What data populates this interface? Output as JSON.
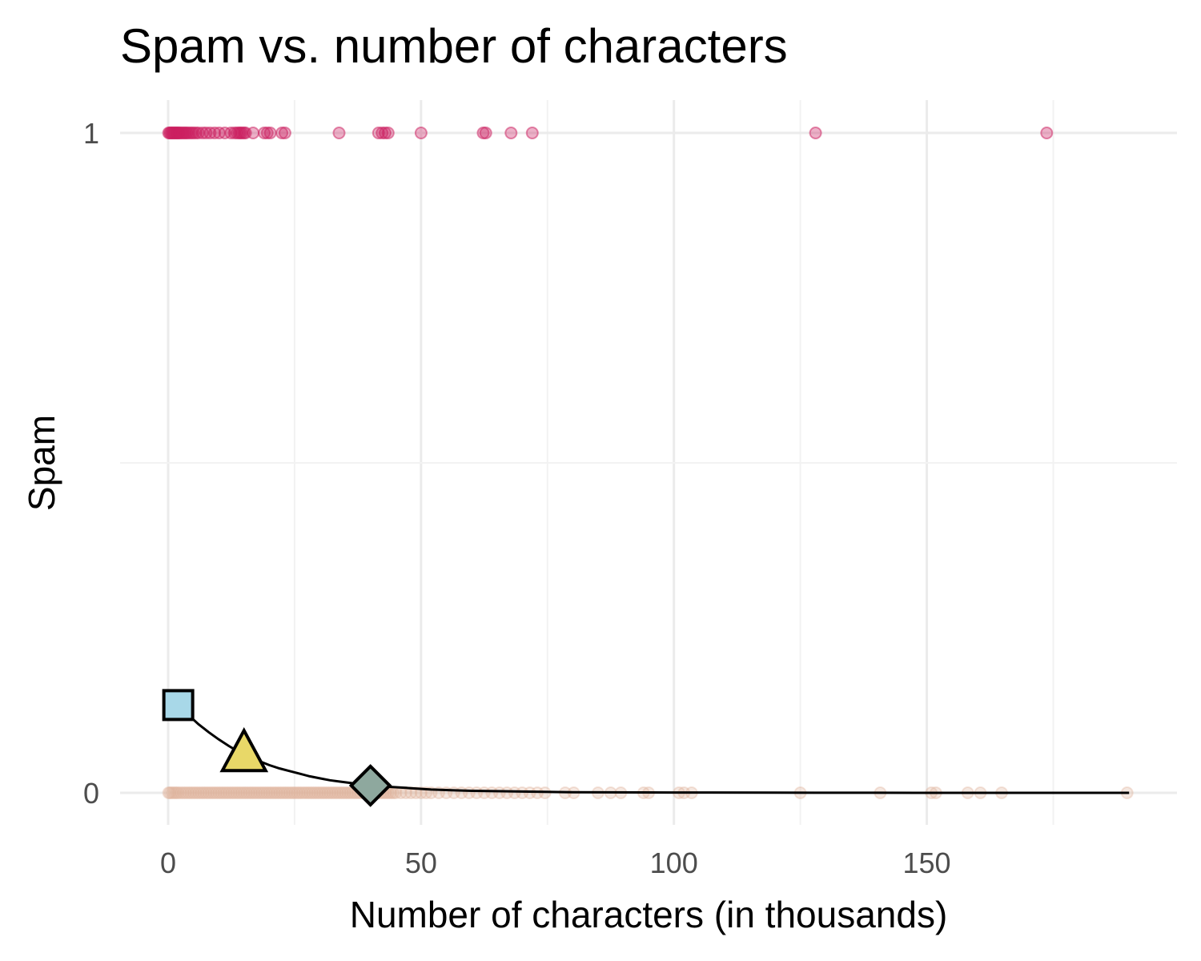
{
  "chart_data": {
    "type": "scatter",
    "title": "Spam vs. number of characters",
    "xlabel": "Number of characters (in thousands)",
    "ylabel": "Spam",
    "xlim": [
      -9.3,
      199.3
    ],
    "ylim": [
      -0.05,
      1.05
    ],
    "x_ticks": [
      0,
      50,
      100,
      150
    ],
    "y_ticks": [
      0,
      1
    ],
    "grid": true,
    "colors": {
      "spam": "#cc2060",
      "not_spam": "#dfb29c",
      "curve": "#000000",
      "square": "#a8d8e8",
      "triangle": "#e8d868",
      "diamond": "#8ea89e"
    },
    "series": [
      {
        "values": 1,
        "x": [
          0.1,
          0.3,
          0.5,
          0.7,
          0.9,
          1.1,
          1.3,
          1.5,
          1.7,
          1.9,
          2.1,
          2.3,
          2.6,
          2.9,
          3.2,
          3.5,
          3.8,
          4.2,
          4.6,
          5.0,
          5.5,
          6.0,
          6.8,
          7.5,
          8.3,
          9.2,
          10.1,
          11.2,
          12.4,
          13.1,
          13.6,
          14.0,
          14.3,
          14.6,
          15.0,
          15.3,
          16.8,
          19.0,
          19.6,
          20.2,
          22.5,
          23.1,
          33.8,
          41.6,
          42.3,
          42.9,
          43.5,
          50.0,
          62.3,
          62.8,
          67.8,
          72.0,
          128.0,
          173.7
        ]
      },
      {
        "values": 0,
        "x": [
          0.1,
          0.4,
          0.8,
          1.2,
          1.6,
          2.0,
          2.5,
          3.0,
          3.5,
          4.0,
          4.5,
          5.0,
          5.5,
          6.0,
          6.5,
          7.0,
          7.5,
          8.0,
          8.5,
          9.0,
          9.5,
          10.0,
          10.5,
          11.0,
          11.5,
          12.0,
          12.5,
          13.0,
          13.5,
          14.0,
          14.5,
          15.0,
          15.5,
          16.0,
          16.5,
          17.0,
          17.5,
          18.0,
          18.5,
          19.0,
          19.5,
          20.0,
          20.5,
          21.0,
          21.5,
          22.0,
          22.5,
          23.0,
          23.5,
          24.0,
          24.5,
          25.0,
          25.5,
          26.0,
          26.5,
          27.0,
          27.5,
          28.0,
          28.5,
          29.0,
          29.5,
          30.0,
          30.5,
          31.0,
          31.5,
          32.0,
          32.5,
          33.0,
          33.5,
          34.0,
          34.5,
          35.0,
          35.5,
          36.0,
          36.5,
          37.0,
          37.5,
          38.0,
          38.5,
          39.0,
          39.5,
          40.0,
          40.5,
          41.0,
          41.5,
          42.0,
          42.5,
          43.0,
          43.5,
          44.0,
          44.5,
          45.0,
          46.0,
          47.0,
          48.0,
          49.0,
          50.0,
          51.0,
          52.0,
          53.5,
          55.0,
          56.5,
          58.0,
          59.5,
          61.0,
          62.5,
          64.0,
          65.5,
          67.0,
          68.5,
          70.0,
          71.5,
          73.0,
          74.5,
          78.5,
          80.2,
          85.0,
          87.5,
          89.5,
          94.0,
          95.0,
          101.0,
          102.0,
          103.5,
          125.0,
          140.8,
          150.9,
          151.8,
          158.1,
          160.6,
          164.8,
          189.6
        ]
      }
    ],
    "fitted_curve": {
      "x": [
        2,
        4,
        6,
        8,
        10,
        12,
        14,
        16,
        18,
        20,
        22,
        24,
        26,
        28,
        30,
        32,
        34,
        36,
        38,
        40,
        44,
        48,
        52,
        56,
        60,
        70,
        80,
        100,
        120,
        140,
        160,
        190
      ],
      "y": [
        0.133,
        0.118,
        0.104,
        0.092,
        0.081,
        0.071,
        0.062,
        0.055,
        0.048,
        0.042,
        0.037,
        0.033,
        0.029,
        0.025,
        0.022,
        0.019,
        0.017,
        0.015,
        0.013,
        0.011,
        0.009,
        0.007,
        0.005,
        0.004,
        0.003,
        0.002,
        0.001,
        0.0005,
        0.0002,
        0.0001,
        0.0,
        0.0
      ]
    },
    "highlighted_points": [
      {
        "shape": "square",
        "x": 2,
        "y": 0.133
      },
      {
        "shape": "triangle",
        "x": 15,
        "y": 0.058
      },
      {
        "shape": "diamond",
        "x": 40,
        "y": 0.011
      }
    ]
  }
}
